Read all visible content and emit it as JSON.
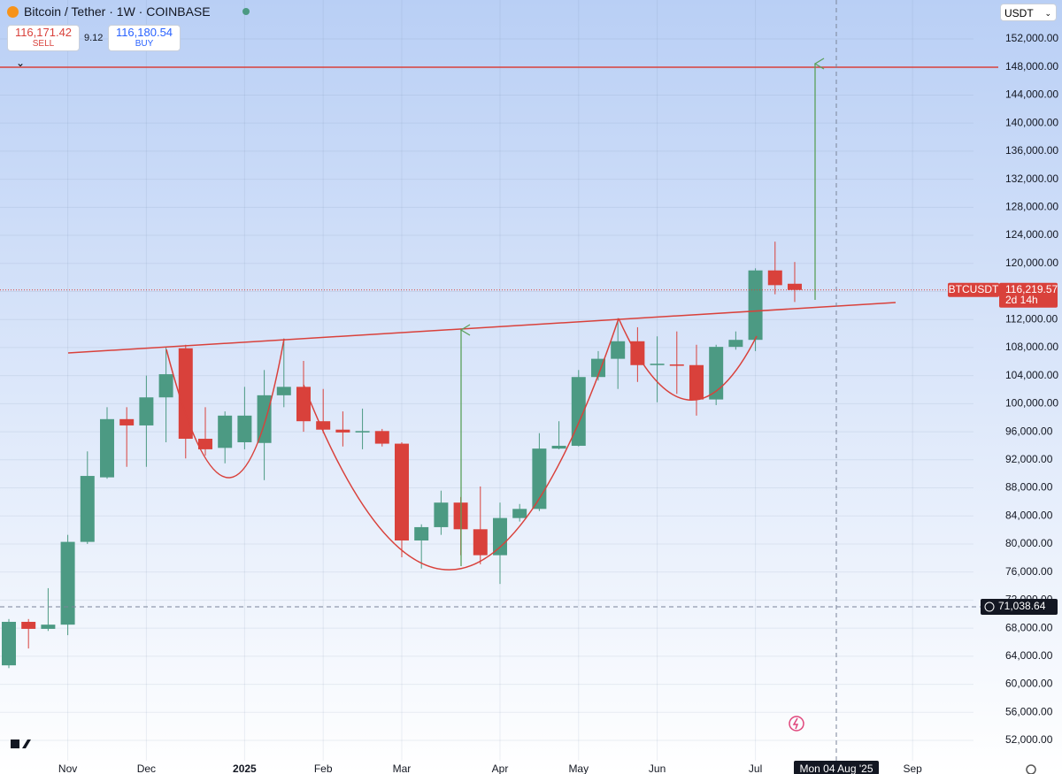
{
  "header": {
    "title": "Bitcoin / Tether · 1W · COINBASE",
    "sell_price": "116,171.42",
    "sell_label": "SELL",
    "spread": "9.12",
    "buy_price": "116,180.54",
    "buy_label": "BUY",
    "currency": "USDT"
  },
  "chart_data": {
    "type": "candlestick",
    "categories": [
      null,
      null,
      null,
      null,
      null,
      null,
      null,
      null,
      null,
      null,
      null,
      null,
      null,
      null,
      null,
      null,
      null,
      null,
      null,
      null,
      null,
      null,
      null,
      null,
      null,
      null,
      null,
      null,
      null,
      null,
      null,
      null,
      null,
      null,
      null,
      null,
      null,
      null,
      null,
      null,
      null
    ],
    "open": [
      62700,
      68900,
      67900,
      68500,
      80300,
      89500,
      97800,
      96900,
      100900,
      107900,
      95000,
      93700,
      94500,
      94400,
      101200,
      102400,
      97500,
      96300,
      95900,
      96100,
      94300,
      80500,
      82400,
      85900,
      82100,
      78400,
      83700,
      85000,
      93600,
      94000,
      103800,
      106400,
      108900,
      105500,
      105600,
      105500,
      100600,
      108100,
      109100,
      119000,
      117100
    ],
    "high": [
      69300,
      69300,
      73700,
      81300,
      93200,
      99500,
      99500,
      104000,
      108000,
      108400,
      99500,
      98900,
      102400,
      104800,
      109300,
      106100,
      102100,
      98900,
      99300,
      96400,
      94500,
      82800,
      87600,
      86700,
      88200,
      85900,
      85700,
      95800,
      97500,
      104800,
      107500,
      112200,
      110900,
      109600,
      110300,
      108400,
      108400,
      110300,
      119300,
      123100,
      120200
    ],
    "low": [
      62300,
      65100,
      67600,
      67000,
      80000,
      89300,
      91000,
      91000,
      94500,
      92200,
      92600,
      91500,
      93500,
      89100,
      99500,
      96000,
      95800,
      93900,
      93500,
      93900,
      78100,
      76500,
      81300,
      78400,
      77100,
      74300,
      83200,
      84700,
      93500,
      93900,
      103300,
      102100,
      103100,
      100200,
      101400,
      98300,
      99800,
      107700,
      107500,
      115600,
      114500
    ],
    "close": [
      68900,
      67900,
      68500,
      80300,
      89700,
      97800,
      96900,
      100900,
      104200,
      95000,
      93500,
      98300,
      98300,
      101200,
      102400,
      97500,
      96300,
      95900,
      96100,
      94300,
      80500,
      82400,
      85900,
      82100,
      78400,
      83700,
      85000,
      93600,
      94000,
      103800,
      106400,
      108900,
      105500,
      105700,
      105400,
      100600,
      108100,
      109100,
      119000,
      116900,
      116219.57
    ],
    "up_color": "#4c9a83",
    "down_color": "#d9413b",
    "xlim": [
      -0.45,
      49.1
    ],
    "xticks": [
      {
        "value": 3,
        "label": "Nov"
      },
      {
        "value": 7,
        "label": "Dec"
      },
      {
        "value": 12,
        "label": "2025"
      },
      {
        "value": 16,
        "label": "Feb"
      },
      {
        "value": 20,
        "label": "Mar"
      },
      {
        "value": 25,
        "label": "Apr"
      },
      {
        "value": 29,
        "label": "May"
      },
      {
        "value": 33,
        "label": "Jun"
      },
      {
        "value": 38,
        "label": "Jul"
      },
      {
        "value": 46,
        "label": "Sep"
      }
    ],
    "ylim": [
      49100,
      157550
    ],
    "yticks": [
      {
        "value": 52000,
        "label": "52,000.00"
      },
      {
        "value": 56000,
        "label": "56,000.00"
      },
      {
        "value": 60000,
        "label": "60,000.00"
      },
      {
        "value": 64000,
        "label": "64,000.00"
      },
      {
        "value": 68000,
        "label": "68,000.00"
      },
      {
        "value": 72000,
        "label": "72,000.00"
      },
      {
        "value": 76000,
        "label": "76,000.00"
      },
      {
        "value": 80000,
        "label": "80,000.00"
      },
      {
        "value": 84000,
        "label": "84,000.00"
      },
      {
        "value": 88000,
        "label": "88,000.00"
      },
      {
        "value": 92000,
        "label": "92,000.00"
      },
      {
        "value": 96000,
        "label": "96,000.00"
      },
      {
        "value": 100000,
        "label": "100,000.00"
      },
      {
        "value": 104000,
        "label": "104,000.00"
      },
      {
        "value": 108000,
        "label": "108,000.00"
      },
      {
        "value": 112000,
        "label": "112,000.00"
      },
      {
        "value": 116000,
        "label": "116,000.00"
      },
      {
        "value": 120000,
        "label": "120,000.00"
      },
      {
        "value": 124000,
        "label": "124,000.00"
      },
      {
        "value": 128000,
        "label": "128,000.00"
      },
      {
        "value": 132000,
        "label": "132,000.00"
      },
      {
        "value": 136000,
        "label": "136,000.00"
      },
      {
        "value": 140000,
        "label": "140,000.00"
      },
      {
        "value": 144000,
        "label": "144,000.00"
      },
      {
        "value": 148000,
        "label": "148,000.00"
      },
      {
        "value": 152000,
        "label": "152,000.00"
      }
    ],
    "grid": true,
    "last_price": {
      "value": 116219.57,
      "label": "116,219.57"
    },
    "symbol": "BTCUSDT",
    "countdown": "2d 14h",
    "crosshair": {
      "price": {
        "value": 71038.64,
        "label": "71,038.64"
      },
      "date": "Mon 04 Aug '25"
    }
  }
}
